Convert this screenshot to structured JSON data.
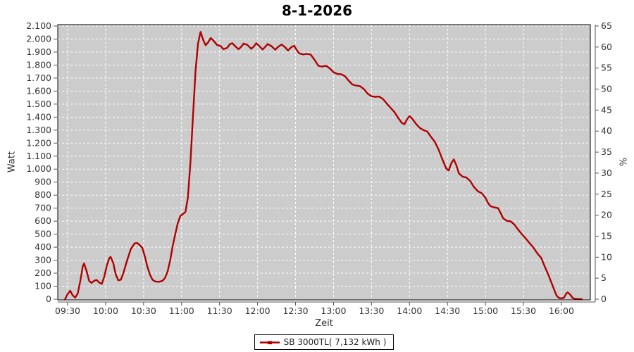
{
  "title": "8-1-2026",
  "axes": {
    "left_title": "Watt",
    "bottom_title": "Zeit",
    "right_title": "%",
    "left_ticks": [
      "0",
      "100",
      "200",
      "300",
      "400",
      "500",
      "600",
      "700",
      "800",
      "900",
      "1.000",
      "1.100",
      "1.200",
      "1.300",
      "1.400",
      "1.500",
      "1.600",
      "1.700",
      "1.800",
      "1.900",
      "2.000",
      "2.100"
    ],
    "right_ticks": [
      "0",
      "5",
      "10",
      "15",
      "20",
      "25",
      "30",
      "35",
      "40",
      "45",
      "50",
      "55",
      "60",
      "65"
    ],
    "bottom_ticks": [
      "09:30",
      "10:00",
      "10:30",
      "11:00",
      "11:30",
      "12:00",
      "12:30",
      "13:00",
      "13:30",
      "14:00",
      "14:30",
      "15:00",
      "15:30",
      "16:00"
    ]
  },
  "legend": {
    "label": "SB 3000TL( 7,132 kWh )"
  },
  "colors": {
    "series": "#b00000",
    "plot_bg": "#cccccc",
    "grid": "#ffffff",
    "border": "#000000",
    "axis": "#555555",
    "text": "#333333",
    "outer_bg": "#ffffff"
  },
  "chart_data": {
    "type": "line",
    "title": "8-1-2026",
    "xlabel": "Zeit",
    "ylabel": "Watt",
    "y2label": "%",
    "x_range": [
      "09:22",
      "16:23"
    ],
    "ylim": [
      0,
      2100
    ],
    "y2lim": [
      0,
      65
    ],
    "y_tick_step": 100,
    "y2_tick_step": 5,
    "x_tick_step_minutes": 30,
    "grid": true,
    "legend_position": "bottom",
    "series": [
      {
        "name": "SB 3000TL( 7,132 kWh )",
        "color": "#b00000",
        "points": [
          [
            "09:28",
            0
          ],
          [
            "09:30",
            40
          ],
          [
            "09:32",
            65
          ],
          [
            "09:34",
            30
          ],
          [
            "09:36",
            12
          ],
          [
            "09:38",
            45
          ],
          [
            "09:40",
            140
          ],
          [
            "09:42",
            255
          ],
          [
            "09:43",
            275
          ],
          [
            "09:45",
            215
          ],
          [
            "09:47",
            140
          ],
          [
            "09:49",
            125
          ],
          [
            "09:51",
            142
          ],
          [
            "09:53",
            148
          ],
          [
            "09:55",
            128
          ],
          [
            "09:57",
            118
          ],
          [
            "09:59",
            175
          ],
          [
            "10:01",
            260
          ],
          [
            "10:03",
            318
          ],
          [
            "10:04",
            325
          ],
          [
            "10:06",
            280
          ],
          [
            "10:08",
            190
          ],
          [
            "10:10",
            145
          ],
          [
            "10:12",
            150
          ],
          [
            "10:14",
            200
          ],
          [
            "10:17",
            300
          ],
          [
            "10:20",
            388
          ],
          [
            "10:23",
            430
          ],
          [
            "10:25",
            432
          ],
          [
            "10:27",
            415
          ],
          [
            "10:29",
            395
          ],
          [
            "10:31",
            330
          ],
          [
            "10:33",
            250
          ],
          [
            "10:35",
            190
          ],
          [
            "10:37",
            150
          ],
          [
            "10:39",
            137
          ],
          [
            "10:42",
            133
          ],
          [
            "10:45",
            142
          ],
          [
            "10:47",
            165
          ],
          [
            "10:49",
            215
          ],
          [
            "10:51",
            300
          ],
          [
            "10:53",
            410
          ],
          [
            "10:55",
            500
          ],
          [
            "10:57",
            585
          ],
          [
            "10:59",
            640
          ],
          [
            "11:01",
            655
          ],
          [
            "11:03",
            670
          ],
          [
            "11:05",
            780
          ],
          [
            "11:07",
            1050
          ],
          [
            "11:09",
            1400
          ],
          [
            "11:11",
            1750
          ],
          [
            "11:13",
            1965
          ],
          [
            "11:15",
            2055
          ],
          [
            "11:17",
            1995
          ],
          [
            "11:19",
            1952
          ],
          [
            "11:21",
            1975
          ],
          [
            "11:23",
            2008
          ],
          [
            "11:25",
            1990
          ],
          [
            "11:28",
            1955
          ],
          [
            "11:31",
            1945
          ],
          [
            "11:33",
            1922
          ],
          [
            "11:36",
            1932
          ],
          [
            "11:38",
            1960
          ],
          [
            "11:40",
            1968
          ],
          [
            "11:43",
            1940
          ],
          [
            "11:45",
            1922
          ],
          [
            "11:47",
            1940
          ],
          [
            "11:49",
            1965
          ],
          [
            "11:52",
            1955
          ],
          [
            "11:55",
            1925
          ],
          [
            "11:57",
            1942
          ],
          [
            "11:59",
            1968
          ],
          [
            "12:01",
            1950
          ],
          [
            "12:04",
            1920
          ],
          [
            "12:06",
            1940
          ],
          [
            "12:08",
            1962
          ],
          [
            "12:11",
            1945
          ],
          [
            "12:14",
            1918
          ],
          [
            "12:16",
            1938
          ],
          [
            "12:19",
            1958
          ],
          [
            "12:22",
            1935
          ],
          [
            "12:24",
            1912
          ],
          [
            "12:27",
            1940
          ],
          [
            "12:29",
            1948
          ],
          [
            "12:31",
            1915
          ],
          [
            "12:33",
            1890
          ],
          [
            "12:36",
            1882
          ],
          [
            "12:39",
            1886
          ],
          [
            "12:42",
            1880
          ],
          [
            "12:45",
            1840
          ],
          [
            "12:48",
            1795
          ],
          [
            "12:51",
            1788
          ],
          [
            "12:54",
            1795
          ],
          [
            "12:57",
            1775
          ],
          [
            "13:00",
            1745
          ],
          [
            "13:03",
            1732
          ],
          [
            "13:06",
            1730
          ],
          [
            "13:09",
            1715
          ],
          [
            "13:12",
            1680
          ],
          [
            "13:15",
            1650
          ],
          [
            "13:18",
            1642
          ],
          [
            "13:21",
            1638
          ],
          [
            "13:24",
            1615
          ],
          [
            "13:27",
            1580
          ],
          [
            "13:30",
            1560
          ],
          [
            "13:33",
            1556
          ],
          [
            "13:36",
            1558
          ],
          [
            "13:39",
            1540
          ],
          [
            "13:42",
            1505
          ],
          [
            "13:45",
            1472
          ],
          [
            "13:48",
            1440
          ],
          [
            "13:51",
            1395
          ],
          [
            "13:54",
            1355
          ],
          [
            "13:56",
            1345
          ],
          [
            "13:58",
            1382
          ],
          [
            "14:00",
            1408
          ],
          [
            "14:02",
            1390
          ],
          [
            "14:05",
            1350
          ],
          [
            "14:08",
            1318
          ],
          [
            "14:11",
            1300
          ],
          [
            "14:14",
            1290
          ],
          [
            "14:17",
            1248
          ],
          [
            "14:20",
            1210
          ],
          [
            "14:23",
            1150
          ],
          [
            "14:26",
            1075
          ],
          [
            "14:29",
            1005
          ],
          [
            "14:31",
            990
          ],
          [
            "14:33",
            1045
          ],
          [
            "14:35",
            1075
          ],
          [
            "14:37",
            1030
          ],
          [
            "14:39",
            968
          ],
          [
            "14:42",
            942
          ],
          [
            "14:45",
            935
          ],
          [
            "14:48",
            908
          ],
          [
            "14:51",
            862
          ],
          [
            "14:54",
            830
          ],
          [
            "14:57",
            815
          ],
          [
            "15:00",
            780
          ],
          [
            "15:02",
            740
          ],
          [
            "15:04",
            715
          ],
          [
            "15:07",
            706
          ],
          [
            "15:10",
            700
          ],
          [
            "15:12",
            662
          ],
          [
            "15:14",
            622
          ],
          [
            "15:17",
            602
          ],
          [
            "15:20",
            598
          ],
          [
            "15:23",
            572
          ],
          [
            "15:26",
            532
          ],
          [
            "15:29",
            498
          ],
          [
            "15:32",
            465
          ],
          [
            "15:35",
            430
          ],
          [
            "15:38",
            395
          ],
          [
            "15:41",
            352
          ],
          [
            "15:44",
            318
          ],
          [
            "15:46",
            270
          ],
          [
            "15:48",
            225
          ],
          [
            "15:50",
            180
          ],
          [
            "15:52",
            130
          ],
          [
            "15:54",
            80
          ],
          [
            "15:56",
            30
          ],
          [
            "15:58",
            10
          ],
          [
            "16:00",
            6
          ],
          [
            "16:02",
            12
          ],
          [
            "16:04",
            45
          ],
          [
            "16:05",
            52
          ],
          [
            "16:07",
            35
          ],
          [
            "16:09",
            8
          ],
          [
            "16:11",
            3
          ],
          [
            "16:14",
            1
          ],
          [
            "16:16",
            0
          ]
        ]
      }
    ]
  }
}
